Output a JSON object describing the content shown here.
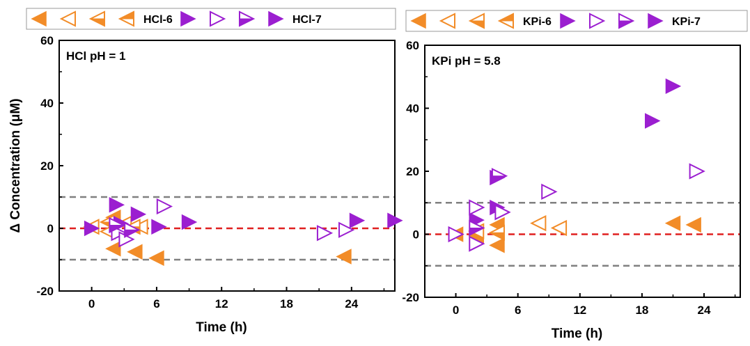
{
  "colors": {
    "orange": "#F28C28",
    "purple": "#9B1FD0",
    "red": "#E02020",
    "gray": "#808080"
  },
  "chart_data": [
    {
      "type": "scatter",
      "annotation": "HCl pH = 1",
      "xlabel": "Time (h)",
      "ylabel": "Δ Concentration (μM)",
      "xlim": [
        -3,
        28
      ],
      "ylim": [
        -20,
        60
      ],
      "xticks": [
        0,
        6,
        12,
        18,
        24
      ],
      "yticks": [
        -20,
        0,
        20,
        40,
        60
      ],
      "reference_lines": [
        {
          "y": 10,
          "color": "gray",
          "style": "dashed"
        },
        {
          "y": 0,
          "color": "red",
          "style": "dashed"
        },
        {
          "y": -10,
          "color": "gray",
          "style": "dashed"
        }
      ],
      "legend": [
        {
          "marker": "left-filled",
          "color": "orange",
          "label": ""
        },
        {
          "marker": "left-open",
          "color": "orange",
          "label": ""
        },
        {
          "marker": "left-half",
          "color": "orange",
          "label": ""
        },
        {
          "marker": "left-half-alt",
          "color": "orange",
          "label": "HCl-6"
        },
        {
          "marker": "right-filled",
          "color": "purple",
          "label": ""
        },
        {
          "marker": "right-open",
          "color": "purple",
          "label": ""
        },
        {
          "marker": "right-half",
          "color": "purple",
          "label": ""
        },
        {
          "marker": "right-filled",
          "color": "purple",
          "label": "HCl-7"
        }
      ],
      "series": [
        {
          "marker": "left-filled",
          "color": "orange",
          "points": [
            [
              0,
              0.5
            ],
            [
              2,
              3.5
            ],
            [
              2,
              -6.5
            ],
            [
              4,
              -7.5
            ],
            [
              6,
              -9.5
            ],
            [
              23.3,
              -9.0
            ]
          ]
        },
        {
          "marker": "left-open",
          "color": "orange",
          "points": [
            [
              0,
              0.5
            ],
            [
              1.5,
              -1.0
            ],
            [
              3,
              1.5
            ],
            [
              4.5,
              0.5
            ]
          ]
        },
        {
          "marker": "left-half",
          "color": "orange",
          "points": [
            [
              1.5,
              2.0
            ],
            [
              3.8,
              0.5
            ]
          ]
        },
        {
          "marker": "right-filled",
          "color": "purple",
          "points": [
            [
              0,
              0
            ],
            [
              2.3,
              7.5
            ],
            [
              2.7,
              1.5
            ],
            [
              4.3,
              4.5
            ],
            [
              6.2,
              0.5
            ],
            [
              9,
              2.0
            ],
            [
              24.5,
              2.5
            ],
            [
              28,
              2.5
            ]
          ]
        },
        {
          "marker": "right-open",
          "color": "purple",
          "points": [
            [
              2.5,
              -1.5
            ],
            [
              3.2,
              -3.5
            ],
            [
              6.7,
              7.0
            ],
            [
              21.5,
              -1.5
            ],
            [
              23.5,
              -0.5
            ]
          ]
        },
        {
          "marker": "right-half",
          "color": "purple",
          "points": [
            [
              2.3,
              1.0
            ],
            [
              3.7,
              -0.5
            ]
          ]
        }
      ]
    },
    {
      "type": "scatter",
      "annotation": "KPi pH = 5.8",
      "xlabel": "Time (h)",
      "ylabel": "",
      "xlim": [
        -3,
        27.5
      ],
      "ylim": [
        -20,
        60
      ],
      "xticks": [
        0,
        6,
        12,
        18,
        24
      ],
      "yticks": [
        -20,
        0,
        20,
        40,
        60
      ],
      "reference_lines": [
        {
          "y": 10,
          "color": "gray",
          "style": "dashed"
        },
        {
          "y": 0,
          "color": "red",
          "style": "dashed"
        },
        {
          "y": -10,
          "color": "gray",
          "style": "dashed"
        }
      ],
      "legend": [
        {
          "marker": "left-filled",
          "color": "orange",
          "label": ""
        },
        {
          "marker": "left-open",
          "color": "orange",
          "label": ""
        },
        {
          "marker": "left-half",
          "color": "orange",
          "label": ""
        },
        {
          "marker": "left-half-alt",
          "color": "orange",
          "label": "KPi-6"
        },
        {
          "marker": "right-filled",
          "color": "purple",
          "label": ""
        },
        {
          "marker": "right-open",
          "color": "purple",
          "label": ""
        },
        {
          "marker": "right-half",
          "color": "purple",
          "label": ""
        },
        {
          "marker": "right-filled",
          "color": "purple",
          "label": "KPi-7"
        }
      ],
      "series": [
        {
          "marker": "left-filled",
          "color": "orange",
          "points": [
            [
              0,
              0
            ],
            [
              2,
              -0.5
            ],
            [
              4,
              3.0
            ],
            [
              4,
              -3.5
            ],
            [
              21,
              3.5
            ],
            [
              23,
              3.0
            ]
          ]
        },
        {
          "marker": "left-open",
          "color": "orange",
          "points": [
            [
              2,
              1.0
            ],
            [
              8,
              3.5
            ],
            [
              10,
              2.0
            ]
          ]
        },
        {
          "marker": "left-half",
          "color": "orange",
          "points": [
            [
              4,
              0.5
            ]
          ]
        },
        {
          "marker": "right-filled",
          "color": "purple",
          "points": [
            [
              2,
              4.5
            ],
            [
              4,
              8.5
            ],
            [
              4,
              18.0
            ],
            [
              19,
              36.0
            ],
            [
              21,
              47.0
            ]
          ]
        },
        {
          "marker": "right-open",
          "color": "purple",
          "points": [
            [
              0,
              0
            ],
            [
              2,
              8.5
            ],
            [
              2,
              -3.0
            ],
            [
              4.5,
              7.0
            ],
            [
              9,
              13.5
            ],
            [
              23.3,
              20.0
            ]
          ]
        },
        {
          "marker": "right-half",
          "color": "purple",
          "points": [
            [
              2,
              2.0
            ],
            [
              4.2,
              18.5
            ]
          ]
        }
      ]
    }
  ]
}
